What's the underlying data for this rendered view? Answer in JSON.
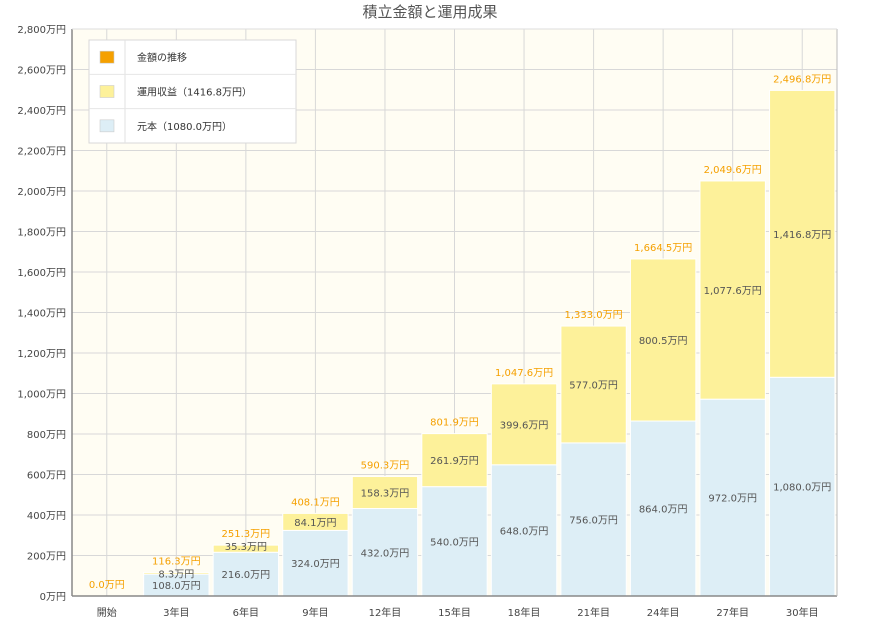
{
  "colors": {
    "plot_bg": "#fffdf3",
    "grid": "#d8d8d8",
    "principal": "#ddeef6",
    "gain": "#fdf19a",
    "total": "#f5a000",
    "axis": "#888888"
  },
  "chart_data": {
    "type": "bar",
    "stacked": true,
    "title": "積立金額と運用成果",
    "categories": [
      "開始",
      "3年目",
      "6年目",
      "9年目",
      "12年目",
      "15年目",
      "18年目",
      "21年目",
      "24年目",
      "27年目",
      "30年目"
    ],
    "series": [
      {
        "name": "元本（1080.0万円）",
        "color": "#ddeef6",
        "values": [
          0,
          108.0,
          216.0,
          324.0,
          432.0,
          540.0,
          648.0,
          756.0,
          864.0,
          972.0,
          1080.0
        ],
        "labels": [
          null,
          "108.0万円",
          "216.0万円",
          "324.0万円",
          "432.0万円",
          "540.0万円",
          "648.0万円",
          "756.0万円",
          "864.0万円",
          "972.0万円",
          "1,080.0万円"
        ]
      },
      {
        "name": "運用収益（1416.8万円）",
        "color": "#fdf19a",
        "values": [
          0,
          8.3,
          35.3,
          84.1,
          158.3,
          261.9,
          399.6,
          577.0,
          800.5,
          1077.6,
          1416.8
        ],
        "labels": [
          null,
          "8.3万円",
          "35.3万円",
          "84.1万円",
          "158.3万円",
          "261.9万円",
          "399.6万円",
          "577.0万円",
          "800.5万円",
          "1,077.6万円",
          "1,416.8万円"
        ]
      }
    ],
    "totals": {
      "name": "金額の推移",
      "color": "#f5a000",
      "values": [
        0.0,
        116.3,
        251.3,
        408.1,
        590.3,
        801.9,
        1047.6,
        1333.0,
        1664.5,
        2049.6,
        2496.8
      ],
      "labels": [
        "0.0万円",
        "116.3万円",
        "251.3万円",
        "408.1万円",
        "590.3万円",
        "801.9万円",
        "1,047.6万円",
        "1,333.0万円",
        "1,664.5万円",
        "2,049.6万円",
        "2,496.8万円"
      ]
    },
    "ylim": [
      0,
      2800
    ],
    "yticks": [
      0,
      200,
      400,
      600,
      800,
      1000,
      1200,
      1400,
      1600,
      1800,
      2000,
      2200,
      2400,
      2600,
      2800
    ],
    "ytick_labels": [
      "0万円",
      "200万円",
      "400万円",
      "600万円",
      "800万円",
      "1,000万円",
      "1,200万円",
      "1,400万円",
      "1,600万円",
      "1,800万円",
      "2,000万円",
      "2,200万円",
      "2,400万円",
      "2,600万円",
      "2,800万円"
    ],
    "grid": true,
    "legend": {
      "placement": "top-left",
      "items": [
        {
          "label": "金額の推移",
          "color": "#f5a000"
        },
        {
          "label": "運用収益（1416.8万円）",
          "color": "#fdf19a"
        },
        {
          "label": "元本（1080.0万円）",
          "color": "#ddeef6"
        }
      ]
    }
  }
}
